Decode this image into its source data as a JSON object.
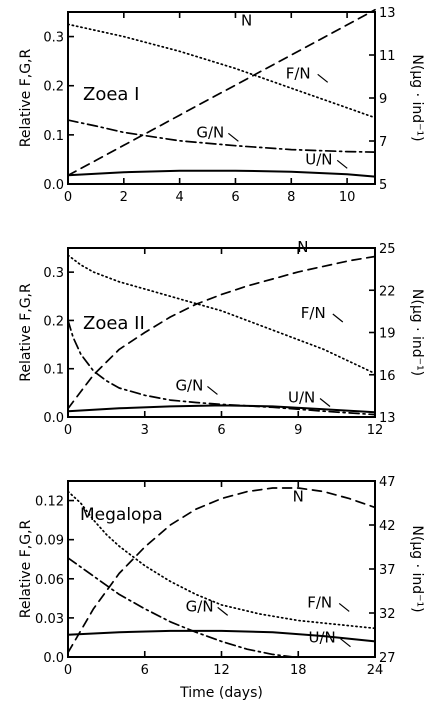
{
  "figure": {
    "xlabel": "Time (days)",
    "ylabel_left": "Relative F,G,R",
    "ylabel_right": "N(µg · ind⁻¹)"
  },
  "chart_data": [
    {
      "type": "line",
      "panel_label": "Zoea I",
      "ylabel": "Relative F,G,R",
      "ylabel_right": "N(µg · ind⁻¹)",
      "xlim": [
        0,
        11
      ],
      "xticks": [
        0,
        2,
        4,
        6,
        8,
        10
      ],
      "ylim": [
        0,
        0.35
      ],
      "yticks": [
        0.0,
        0.1,
        0.2,
        0.3
      ],
      "ytick_labels": [
        "0.0",
        "0.1",
        "0.2",
        "0.3"
      ],
      "y2lim": [
        5,
        13
      ],
      "y2ticks": [
        5,
        7,
        9,
        11,
        13
      ],
      "series": [
        {
          "name": "N",
          "axis": "right",
          "style": "dashed",
          "x": [
            0,
            1,
            2,
            3,
            4,
            5,
            6,
            7,
            8,
            9,
            10,
            11
          ],
          "y": [
            5.4,
            6.1,
            6.8,
            7.5,
            8.2,
            8.9,
            9.6,
            10.3,
            11.0,
            11.7,
            12.4,
            13.1
          ]
        },
        {
          "name": "F/N",
          "axis": "left",
          "style": "dotted",
          "x": [
            0,
            2,
            4,
            6,
            8,
            10,
            11
          ],
          "y": [
            0.325,
            0.3,
            0.27,
            0.235,
            0.195,
            0.155,
            0.135
          ]
        },
        {
          "name": "G/N",
          "axis": "left",
          "style": "dashdot",
          "x": [
            0,
            1,
            2,
            4,
            6,
            8,
            10,
            11
          ],
          "y": [
            0.13,
            0.118,
            0.105,
            0.088,
            0.078,
            0.07,
            0.066,
            0.065
          ]
        },
        {
          "name": "U/N",
          "axis": "left",
          "style": "solid",
          "x": [
            0,
            2,
            4,
            6,
            8,
            10,
            11
          ],
          "y": [
            0.018,
            0.024,
            0.027,
            0.027,
            0.025,
            0.02,
            0.015
          ]
        }
      ]
    },
    {
      "type": "line",
      "panel_label": "Zoea II",
      "ylabel": "Relative F,G,R",
      "ylabel_right": "N(µg · ind⁻¹)",
      "xlim": [
        0,
        12
      ],
      "xticks": [
        0,
        3,
        6,
        9,
        12
      ],
      "ylim": [
        0,
        0.35
      ],
      "yticks": [
        0.0,
        0.1,
        0.2,
        0.3
      ],
      "ytick_labels": [
        "0.0",
        "0.1",
        "0.2",
        "0.3"
      ],
      "y2lim": [
        13,
        25
      ],
      "y2ticks": [
        13,
        16,
        19,
        22,
        25
      ],
      "series": [
        {
          "name": "N",
          "axis": "right",
          "style": "dashed",
          "x": [
            0,
            0.5,
            1,
            2,
            3,
            4,
            5,
            6,
            7,
            8,
            9,
            10,
            11,
            12
          ],
          "y": [
            13.6,
            14.8,
            16.0,
            17.8,
            19.0,
            20.1,
            21.0,
            21.7,
            22.3,
            22.8,
            23.3,
            23.7,
            24.1,
            24.4
          ]
        },
        {
          "name": "F/N",
          "axis": "left",
          "style": "dotted",
          "x": [
            0,
            0.5,
            1,
            2,
            3,
            4,
            6,
            8,
            10,
            12
          ],
          "y": [
            0.335,
            0.315,
            0.3,
            0.28,
            0.265,
            0.25,
            0.22,
            0.18,
            0.14,
            0.09
          ]
        },
        {
          "name": "G/N",
          "axis": "left",
          "style": "dashdot",
          "x": [
            0,
            0.2,
            0.5,
            1,
            1.5,
            2,
            3,
            4,
            5,
            6,
            8,
            10,
            12
          ],
          "y": [
            0.2,
            0.165,
            0.13,
            0.095,
            0.075,
            0.06,
            0.045,
            0.035,
            0.03,
            0.026,
            0.02,
            0.012,
            0.005
          ]
        },
        {
          "name": "U/N",
          "axis": "left",
          "style": "solid",
          "x": [
            0,
            2,
            4,
            6,
            8,
            10,
            12
          ],
          "y": [
            0.012,
            0.018,
            0.022,
            0.024,
            0.022,
            0.016,
            0.01
          ]
        }
      ]
    },
    {
      "type": "line",
      "panel_label": "Megalopa",
      "ylabel": "Relative F,G,R",
      "ylabel_right": "N(µg · ind⁻¹)",
      "xlabel": "Time (days)",
      "xlim": [
        0,
        24
      ],
      "xticks": [
        0,
        6,
        12,
        18,
        24
      ],
      "ylim": [
        0,
        0.135
      ],
      "yticks": [
        0.0,
        0.03,
        0.06,
        0.09,
        0.12
      ],
      "ytick_labels": [
        "0.0",
        "0.03",
        "0.06",
        "0.09",
        "0.12"
      ],
      "y2lim": [
        27,
        47
      ],
      "y2ticks": [
        27,
        32,
        37,
        42,
        47
      ],
      "series": [
        {
          "name": "N",
          "axis": "right",
          "style": "dashed",
          "x": [
            0,
            2,
            4,
            6,
            8,
            10,
            12,
            14,
            16,
            18,
            20,
            22,
            24
          ],
          "y": [
            27.5,
            32.5,
            36.5,
            39.5,
            42.0,
            43.8,
            45.0,
            45.8,
            46.2,
            46.2,
            45.8,
            45.0,
            44.0
          ]
        },
        {
          "name": "F/N",
          "axis": "left",
          "style": "dotted",
          "x": [
            0,
            1,
            2,
            3,
            4,
            6,
            8,
            10,
            12,
            15,
            18,
            21,
            24
          ],
          "y": [
            0.127,
            0.118,
            0.105,
            0.094,
            0.085,
            0.07,
            0.058,
            0.048,
            0.04,
            0.033,
            0.028,
            0.025,
            0.022
          ]
        },
        {
          "name": "G/N",
          "axis": "left",
          "style": "dashdot",
          "x": [
            0,
            2,
            4,
            6,
            8,
            10,
            12,
            14,
            16,
            17.6
          ],
          "y": [
            0.076,
            0.062,
            0.048,
            0.037,
            0.027,
            0.019,
            0.012,
            0.006,
            0.002,
            0.0
          ]
        },
        {
          "name": "U/N",
          "axis": "left",
          "style": "solid",
          "x": [
            0,
            4,
            8,
            12,
            16,
            20,
            24
          ],
          "y": [
            0.017,
            0.019,
            0.02,
            0.02,
            0.019,
            0.016,
            0.012
          ]
        }
      ]
    }
  ]
}
